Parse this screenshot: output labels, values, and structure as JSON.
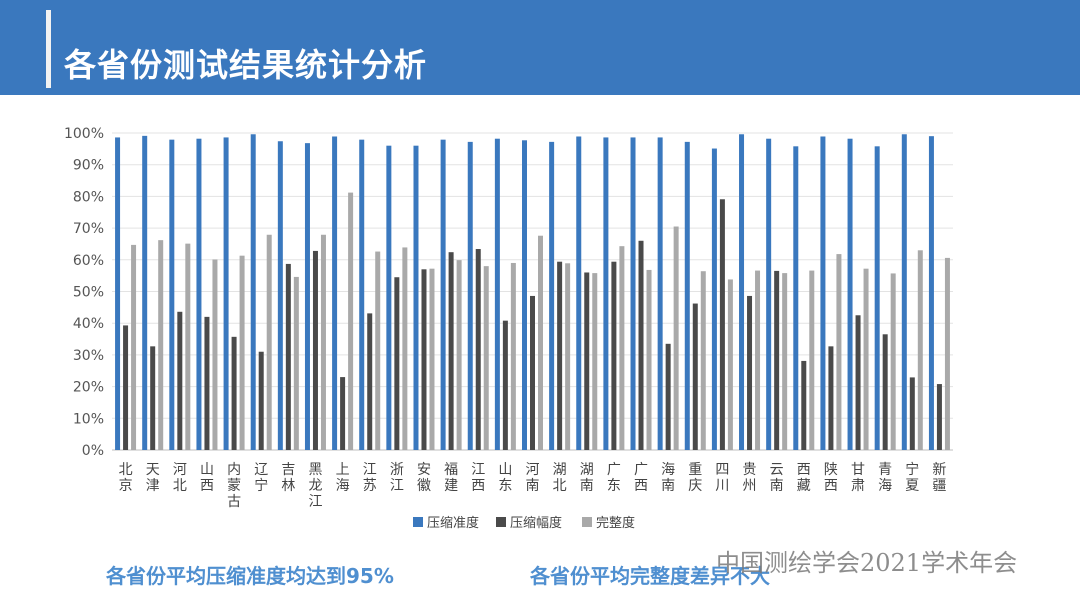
{
  "header": {
    "title": "各省份测试结果统计分析"
  },
  "colors": {
    "header_bg": "#3a78be",
    "series": [
      "#3a78be",
      "#4a4a4a",
      "#a9a9a9"
    ]
  },
  "chart_data": {
    "type": "bar",
    "title": "",
    "xlabel": "",
    "ylabel": "",
    "ylim": [
      0,
      100
    ],
    "yticks": [
      0,
      10,
      20,
      30,
      40,
      50,
      60,
      70,
      80,
      90,
      100
    ],
    "ytick_labels": [
      "0%",
      "10%",
      "20%",
      "30%",
      "40%",
      "50%",
      "60%",
      "70%",
      "80%",
      "90%",
      "100%"
    ],
    "grid": true,
    "legend_position": "bottom",
    "categories": [
      "北京",
      "天津",
      "河北",
      "山西",
      "内蒙古",
      "辽宁",
      "吉林",
      "黑龙江",
      "上海",
      "江苏",
      "浙江",
      "安徽",
      "福建",
      "江西",
      "山东",
      "河南",
      "湖北",
      "湖南",
      "广东",
      "广西",
      "海南",
      "重庆",
      "四川",
      "贵州",
      "云南",
      "西藏",
      "陕西",
      "甘肃",
      "青海",
      "宁夏",
      "新疆"
    ],
    "series": [
      {
        "name": "压缩准度",
        "values": [
          98.6,
          99.1,
          97.9,
          98.2,
          98.6,
          99.6,
          97.4,
          96.8,
          98.9,
          97.9,
          96.0,
          96.0,
          97.9,
          97.2,
          98.2,
          97.7,
          97.2,
          98.9,
          98.6,
          98.6,
          98.6,
          97.2,
          95.1,
          99.6,
          98.2,
          95.8,
          98.9,
          98.2,
          95.8,
          99.6,
          99.0
        ]
      },
      {
        "name": "压缩幅度",
        "values": [
          39.3,
          32.7,
          43.6,
          42.0,
          35.7,
          31.0,
          58.7,
          62.8,
          23.0,
          43.1,
          54.5,
          57.0,
          62.4,
          63.4,
          40.8,
          48.6,
          59.4,
          56.0,
          59.4,
          66.0,
          33.5,
          46.2,
          79.1,
          48.6,
          56.5,
          28.1,
          32.7,
          42.5,
          36.5,
          22.9,
          20.8
        ]
      },
      {
        "name": "完整度",
        "values": [
          64.7,
          66.2,
          65.1,
          60.1,
          61.3,
          67.9,
          54.6,
          67.9,
          81.2,
          62.6,
          63.9,
          57.2,
          59.9,
          58.0,
          59.0,
          67.6,
          58.9,
          55.8,
          64.3,
          56.8,
          70.5,
          56.4,
          53.8,
          56.6,
          55.8,
          56.6,
          61.8,
          57.2,
          55.7,
          63.0,
          60.6
        ]
      }
    ]
  },
  "conclusions": {
    "left": "各省份平均压缩准度均达到95%",
    "right": "各省份平均完整度差异不大"
  },
  "watermark": "中国测绘学会2021学术年会"
}
